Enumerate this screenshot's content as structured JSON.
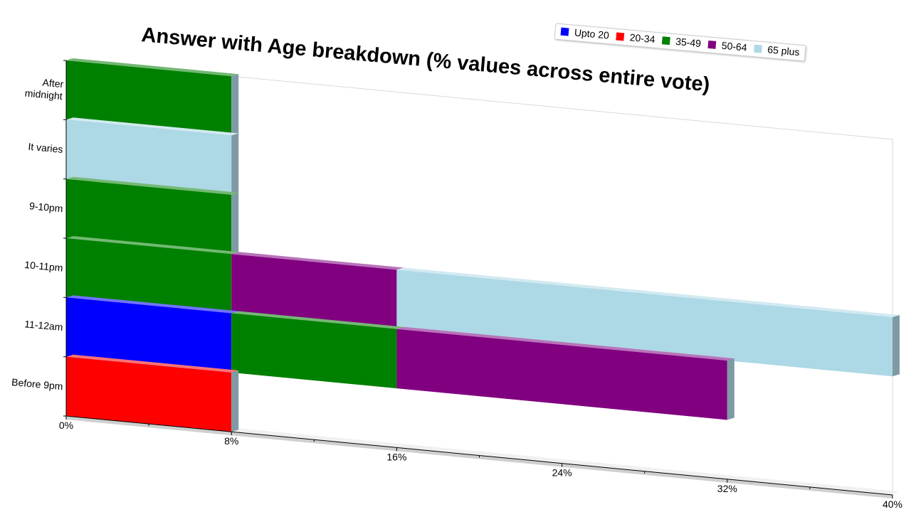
{
  "chart_data": {
    "type": "bar",
    "orientation": "horizontal",
    "stacked": true,
    "title": "Answer with Age breakdown (% values across entire vote)",
    "xlabel": "",
    "ylabel": "",
    "xlim": [
      0,
      40
    ],
    "ticks": [
      "0%",
      "8%",
      "16%",
      "24%",
      "32%",
      "40%"
    ],
    "categories": [
      "Before 9pm",
      "11-12am",
      "10-11pm",
      "9-10pm",
      "It varies",
      "After midnight"
    ],
    "category_labels": [
      [
        "Before 9pm"
      ],
      [
        "11-12am"
      ],
      [
        "10-11pm"
      ],
      [
        "9-10pm"
      ],
      [
        "It varies"
      ],
      [
        "After",
        "midnight"
      ]
    ],
    "series": [
      {
        "name": "Upto 20",
        "color": "#0000ff",
        "values": [
          0,
          8,
          0,
          0,
          0,
          0
        ]
      },
      {
        "name": "20-34",
        "color": "#ff0000",
        "values": [
          8,
          0,
          0,
          0,
          0,
          0
        ]
      },
      {
        "name": "35-49",
        "color": "#008000",
        "values": [
          0,
          8,
          8,
          8,
          0,
          8
        ]
      },
      {
        "name": "50-64",
        "color": "#800080",
        "values": [
          0,
          16,
          8,
          0,
          0,
          0
        ]
      },
      {
        "name": "65 plus",
        "color": "#add8e6",
        "values": [
          0,
          0,
          24,
          0,
          8,
          0
        ]
      }
    ],
    "legend_position": "top-right",
    "grid": false
  }
}
